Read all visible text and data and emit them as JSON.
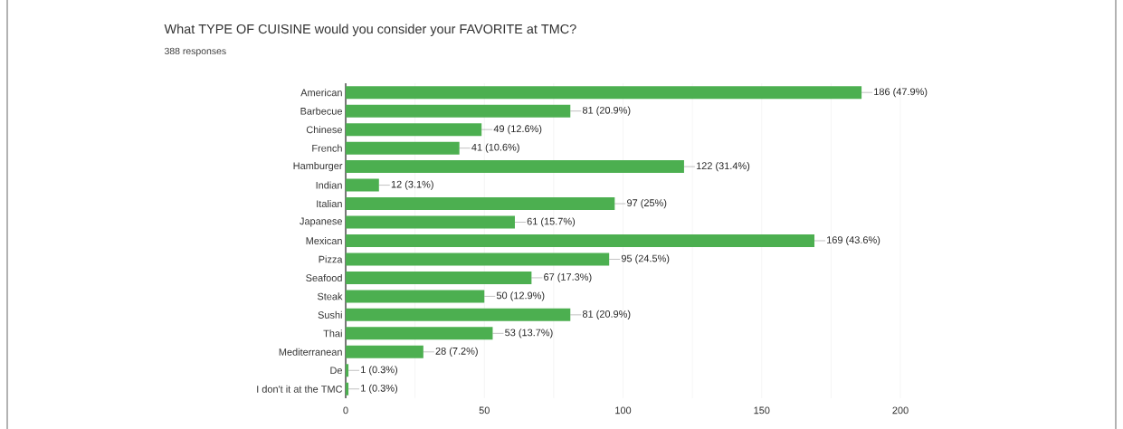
{
  "chart_data": {
    "type": "bar",
    "orientation": "horizontal",
    "title": "What TYPE OF CUISINE would you consider your FAVORITE at TMC?",
    "subtitle": "388 responses",
    "categories": [
      "American",
      "Barbecue",
      "Chinese",
      "French",
      "Hamburger",
      "Indian",
      "Italian",
      "Japanese",
      "Mexican",
      "Pizza",
      "Seafood",
      "Steak",
      "Sushi",
      "Thai",
      "Mediterranean",
      "De",
      "I don't it at the TMC"
    ],
    "values": [
      186,
      81,
      49,
      41,
      122,
      12,
      97,
      61,
      169,
      95,
      67,
      50,
      81,
      53,
      28,
      1,
      1
    ],
    "value_labels": [
      "186 (47.9%)",
      "81 (20.9%)",
      "49 (12.6%)",
      "41 (10.6%)",
      "122 (31.4%)",
      "12 (3.1%)",
      "97 (25%)",
      "61 (15.7%)",
      "169 (43.6%)",
      "95 (24.5%)",
      "67 (17.3%)",
      "50 (12.9%)",
      "81 (20.9%)",
      "53 (13.7%)",
      "28 (7.2%)",
      "1 (0.3%)",
      "1 (0.3%)"
    ],
    "color": "#4caf50",
    "xlim": [
      0,
      200
    ],
    "xticks": [
      0,
      {
        "value": 25,
        "label": null
      },
      50,
      {
        "value": 75,
        "label": null
      },
      100,
      {
        "value": 125,
        "label": null
      },
      150,
      {
        "value": 175,
        "label": null
      },
      200
    ],
    "grid": "x"
  }
}
